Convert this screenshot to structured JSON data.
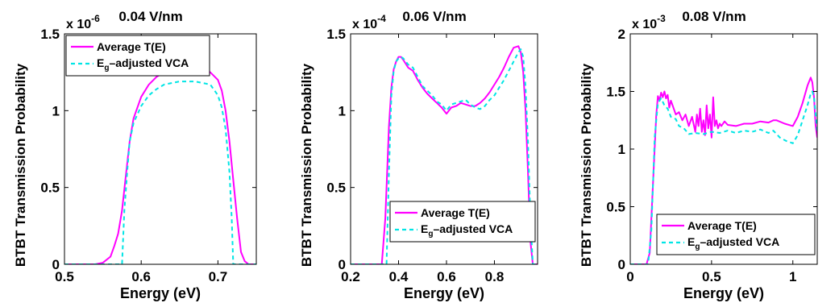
{
  "colors": {
    "average": "#ff00ff",
    "vca": "#00e5e5",
    "axis": "#000000",
    "background": "#ffffff"
  },
  "chart_data": [
    {
      "type": "line",
      "title": "0.04 V/nm",
      "xlabel": "Energy (eV)",
      "ylabel": "BTBT Transmission Probability",
      "multiplier": "x 10",
      "exponent": "-6",
      "xlim": [
        0.5,
        0.75
      ],
      "ylim": [
        0,
        1.5
      ],
      "xticks": [
        "0.5",
        "0.6",
        "0.7"
      ],
      "xtick_values": [
        0.5,
        0.6,
        0.7
      ],
      "yticks": [
        "0",
        "0.5",
        "1",
        "1.5"
      ],
      "ytick_values": [
        0,
        0.5,
        1,
        1.5
      ],
      "legend_placement": "top-left",
      "legend": [
        "Average T(E)",
        "E",
        "g",
        "–adjusted VCA"
      ],
      "series": [
        {
          "name": "Average T(E)",
          "style": "solid",
          "x": [
            0.5,
            0.54,
            0.55,
            0.56,
            0.565,
            0.57,
            0.575,
            0.58,
            0.585,
            0.59,
            0.6,
            0.61,
            0.62,
            0.63,
            0.64,
            0.65,
            0.66,
            0.67,
            0.68,
            0.69,
            0.7,
            0.705,
            0.71,
            0.715,
            0.72,
            0.725,
            0.73,
            0.735,
            0.74,
            0.75
          ],
          "y": [
            0,
            0,
            0.01,
            0.05,
            0.12,
            0.2,
            0.35,
            0.58,
            0.8,
            0.95,
            1.09,
            1.17,
            1.22,
            1.25,
            1.27,
            1.28,
            1.28,
            1.28,
            1.27,
            1.25,
            1.2,
            1.13,
            1.0,
            0.8,
            0.55,
            0.3,
            0.08,
            0.02,
            0,
            0
          ]
        },
        {
          "name": "Eg-adjusted VCA",
          "style": "dashed",
          "x": [
            0.5,
            0.575,
            0.578,
            0.582,
            0.585,
            0.59,
            0.6,
            0.61,
            0.62,
            0.63,
            0.64,
            0.65,
            0.66,
            0.67,
            0.68,
            0.69,
            0.7,
            0.705,
            0.71,
            0.715,
            0.718,
            0.72,
            0.75
          ],
          "y": [
            0,
            0,
            0.35,
            0.62,
            0.8,
            0.92,
            1.03,
            1.1,
            1.14,
            1.17,
            1.18,
            1.19,
            1.19,
            1.19,
            1.18,
            1.17,
            1.1,
            1.02,
            0.88,
            0.6,
            0.3,
            0,
            0
          ]
        }
      ]
    },
    {
      "type": "line",
      "title": "0.06 V/nm",
      "xlabel": "Energy (eV)",
      "ylabel": "BTBT Transmission Probability",
      "multiplier": "x 10",
      "exponent": "-4",
      "xlim": [
        0.2,
        0.98
      ],
      "ylim": [
        0,
        1.5
      ],
      "xticks": [
        "0.2",
        "0.4",
        "0.6",
        "0.8"
      ],
      "xtick_values": [
        0.2,
        0.4,
        0.6,
        0.8
      ],
      "yticks": [
        "0",
        "0.5",
        "1",
        "1.5"
      ],
      "ytick_values": [
        0,
        0.5,
        1,
        1.5
      ],
      "legend_placement": "bottom-right",
      "legend": [
        "Average T(E)",
        "E",
        "g",
        "–adjusted VCA"
      ],
      "series": [
        {
          "name": "Average T(E)",
          "style": "solid",
          "x": [
            0.2,
            0.33,
            0.345,
            0.36,
            0.37,
            0.38,
            0.39,
            0.4,
            0.41,
            0.42,
            0.44,
            0.46,
            0.48,
            0.5,
            0.52,
            0.54,
            0.56,
            0.58,
            0.6,
            0.62,
            0.64,
            0.66,
            0.68,
            0.7,
            0.72,
            0.74,
            0.76,
            0.78,
            0.8,
            0.82,
            0.84,
            0.86,
            0.88,
            0.9,
            0.91,
            0.92,
            0.93,
            0.94,
            0.95,
            0.96,
            0.98
          ],
          "y": [
            0,
            0,
            0.3,
            0.9,
            1.15,
            1.27,
            1.32,
            1.35,
            1.35,
            1.33,
            1.28,
            1.26,
            1.2,
            1.15,
            1.11,
            1.08,
            1.05,
            1.02,
            0.98,
            1.02,
            1.03,
            1.05,
            1.04,
            1.03,
            1.03,
            1.05,
            1.08,
            1.12,
            1.17,
            1.22,
            1.28,
            1.35,
            1.41,
            1.42,
            1.38,
            1.25,
            1.0,
            0.6,
            0.15,
            0,
            0
          ]
        },
        {
          "name": "Eg-adjusted VCA",
          "style": "dashed",
          "x": [
            0.2,
            0.35,
            0.36,
            0.37,
            0.38,
            0.39,
            0.4,
            0.41,
            0.42,
            0.44,
            0.46,
            0.48,
            0.5,
            0.52,
            0.54,
            0.56,
            0.58,
            0.6,
            0.62,
            0.64,
            0.66,
            0.68,
            0.7,
            0.72,
            0.74,
            0.76,
            0.78,
            0.8,
            0.82,
            0.84,
            0.86,
            0.88,
            0.9,
            0.91,
            0.92,
            0.93,
            0.94,
            0.95,
            0.96,
            0.98
          ],
          "y": [
            0,
            0,
            0.6,
            1.1,
            1.26,
            1.32,
            1.34,
            1.35,
            1.34,
            1.3,
            1.28,
            1.22,
            1.16,
            1.13,
            1.1,
            1.06,
            1.04,
            1.0,
            1.04,
            1.05,
            1.06,
            1.07,
            1.04,
            1.02,
            1.01,
            1.03,
            1.07,
            1.1,
            1.15,
            1.2,
            1.26,
            1.32,
            1.38,
            1.4,
            1.35,
            1.15,
            0.8,
            0.3,
            0,
            0
          ]
        }
      ]
    },
    {
      "type": "line",
      "title": "0.08 V/nm",
      "xlabel": "Energy (eV)",
      "ylabel": "BTBT Transmission Probability",
      "multiplier": "x 10",
      "exponent": "-3",
      "xlim": [
        0,
        1.15
      ],
      "ylim": [
        0,
        2
      ],
      "xticks": [
        "0",
        "0.5",
        "1"
      ],
      "xtick_values": [
        0,
        0.5,
        1
      ],
      "yticks": [
        "0",
        "0.5",
        "1",
        "1.5",
        "2"
      ],
      "ytick_values": [
        0,
        0.5,
        1,
        1.5,
        2
      ],
      "legend_placement": "bottom-right",
      "legend": [
        "Average T(E)",
        "E",
        "g",
        "–adjusted VCA"
      ],
      "series": [
        {
          "name": "Average T(E)",
          "style": "solid",
          "x": [
            0,
            0.1,
            0.12,
            0.14,
            0.16,
            0.17,
            0.18,
            0.19,
            0.2,
            0.21,
            0.22,
            0.23,
            0.24,
            0.25,
            0.26,
            0.28,
            0.3,
            0.32,
            0.34,
            0.36,
            0.38,
            0.4,
            0.41,
            0.42,
            0.43,
            0.44,
            0.45,
            0.46,
            0.47,
            0.48,
            0.49,
            0.5,
            0.51,
            0.52,
            0.53,
            0.54,
            0.55,
            0.56,
            0.58,
            0.6,
            0.65,
            0.7,
            0.75,
            0.8,
            0.85,
            0.88,
            0.9,
            0.95,
            1.0,
            1.03,
            1.06,
            1.09,
            1.11,
            1.12,
            1.13,
            1.14,
            1.15
          ],
          "y": [
            0,
            0,
            0.1,
            0.7,
            1.3,
            1.46,
            1.42,
            1.49,
            1.45,
            1.5,
            1.44,
            1.47,
            1.36,
            1.42,
            1.38,
            1.3,
            1.32,
            1.25,
            1.3,
            1.2,
            1.28,
            1.15,
            1.3,
            1.2,
            1.35,
            1.15,
            1.25,
            1.12,
            1.38,
            1.18,
            1.3,
            1.1,
            1.45,
            1.2,
            1.25,
            1.18,
            1.22,
            1.2,
            1.24,
            1.21,
            1.2,
            1.22,
            1.22,
            1.24,
            1.23,
            1.25,
            1.25,
            1.22,
            1.2,
            1.28,
            1.4,
            1.55,
            1.62,
            1.58,
            1.45,
            1.2,
            1.1
          ]
        },
        {
          "name": "Eg-adjusted VCA",
          "style": "dashed",
          "x": [
            0,
            0.11,
            0.13,
            0.15,
            0.17,
            0.19,
            0.21,
            0.23,
            0.25,
            0.28,
            0.3,
            0.33,
            0.36,
            0.4,
            0.45,
            0.5,
            0.55,
            0.6,
            0.65,
            0.7,
            0.75,
            0.8,
            0.85,
            0.88,
            0.92,
            0.96,
            1.0,
            1.03,
            1.06,
            1.09,
            1.11,
            1.12,
            1.13,
            1.14,
            1.15
          ],
          "y": [
            0,
            0,
            0.3,
            1.1,
            1.4,
            1.44,
            1.38,
            1.35,
            1.28,
            1.26,
            1.2,
            1.18,
            1.13,
            1.14,
            1.13,
            1.15,
            1.14,
            1.16,
            1.14,
            1.16,
            1.15,
            1.17,
            1.14,
            1.16,
            1.1,
            1.07,
            1.05,
            1.12,
            1.25,
            1.38,
            1.48,
            1.5,
            1.45,
            1.3,
            1.15
          ]
        }
      ]
    }
  ]
}
